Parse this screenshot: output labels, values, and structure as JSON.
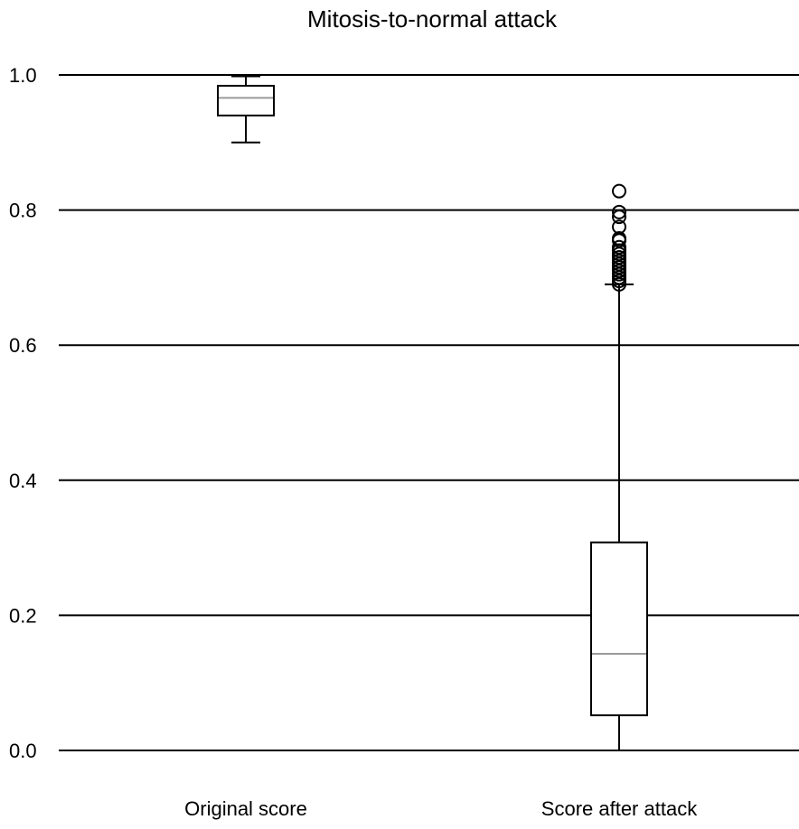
{
  "chart_data": {
    "type": "box",
    "title": "Mitosis-to-normal attack",
    "xlabel": "",
    "ylabel": "",
    "ylim": [
      0.0,
      1.0
    ],
    "yticks": [
      "0.0",
      "0.2",
      "0.4",
      "0.6",
      "0.8",
      "1.0"
    ],
    "grid": "horizontal",
    "categories": [
      "Original score",
      "Score after attack"
    ],
    "boxes": [
      {
        "category": "Original score",
        "whisker_low": 0.9,
        "q1": 0.94,
        "median": 0.966,
        "q3": 0.984,
        "whisker_high": 0.998,
        "outliers": []
      },
      {
        "category": "Score after attack",
        "whisker_low": 0.0,
        "q1": 0.052,
        "median": 0.143,
        "q3": 0.308,
        "whisker_high": 0.69,
        "outliers": [
          0.69,
          0.695,
          0.7,
          0.705,
          0.71,
          0.715,
          0.72,
          0.725,
          0.73,
          0.735,
          0.74,
          0.745,
          0.755,
          0.758,
          0.775,
          0.79,
          0.797,
          0.828
        ]
      }
    ],
    "colors": {
      "box_line": "#000000",
      "median": "#9a9a9a",
      "grid": "#000000"
    }
  }
}
